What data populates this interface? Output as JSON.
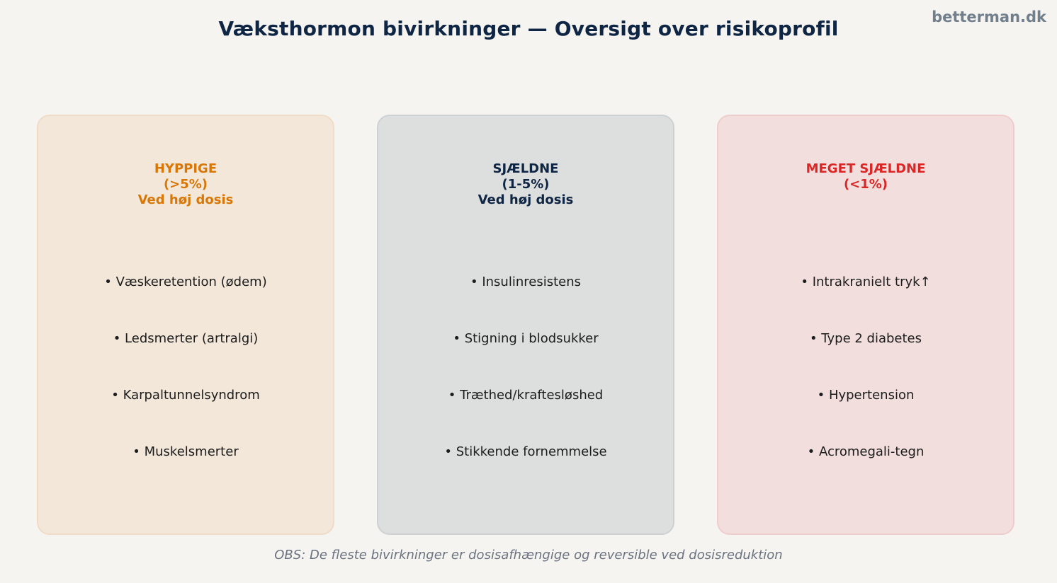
{
  "title": "Væksthormon bivirkninger — Oversigt over risikoprofil",
  "brand": "betterman.dk",
  "colors": {
    "background": "#f5f4f0",
    "title": "#0f2544",
    "common_accent": "#d97706",
    "common_fill": "#f3e7da",
    "rare_accent": "#0f2544",
    "rare_fill": "#dddfde",
    "very_rare_accent": "#dc2626",
    "very_rare_fill": "#f1dedd"
  },
  "cards": [
    {
      "heading": [
        "HYPPIGE",
        "(>5%)",
        "Ved høj dosis"
      ],
      "items": [
        "• Væskeretention (ødem)",
        "• Ledsmerter (artralgi)",
        "• Karpaltunnelsyndrom",
        "• Muskelsmerter"
      ]
    },
    {
      "heading": [
        "SJÆLDNE",
        "(1-5%)",
        "Ved høj dosis"
      ],
      "items": [
        "• Insulinresistens",
        "• Stigning i blodsukker",
        "• Træthed/kraftesløshed",
        "• Stikkende fornemmelse"
      ]
    },
    {
      "heading": [
        "MEGET SJÆLDNE",
        "(<1%)"
      ],
      "items": [
        "• Intrakranielt tryk↑",
        "• Type 2 diabetes",
        "• Hypertension",
        "• Acromegali-tegn"
      ]
    }
  ],
  "footnote": "OBS: De fleste bivirkninger er dosisafhængige og reversible ved dosisreduktion"
}
